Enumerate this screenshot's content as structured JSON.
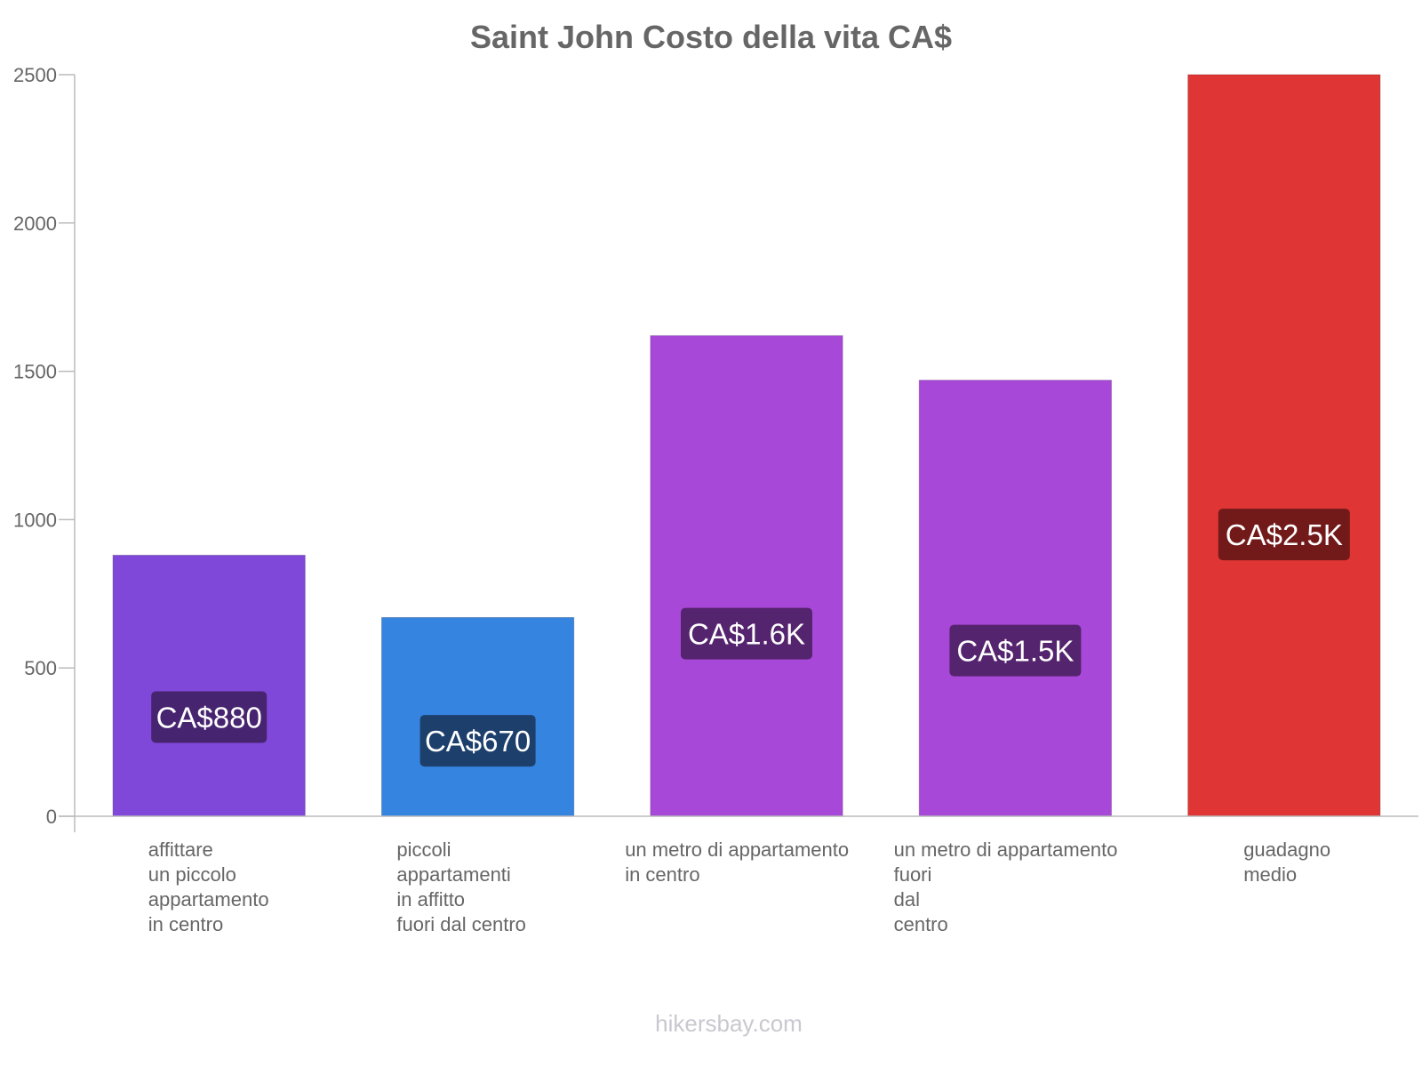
{
  "chart_data": {
    "type": "bar",
    "title": "Saint John Costo della vita CA$",
    "xlabel": "",
    "ylabel": "",
    "ylim": [
      0,
      2500
    ],
    "yticks": [
      0,
      500,
      1000,
      1500,
      2000,
      2500
    ],
    "grid": false,
    "legend": "none",
    "categories": [
      [
        "affittare",
        "un piccolo",
        "appartamento",
        "in centro"
      ],
      [
        "piccoli",
        "appartamenti",
        "in affitto",
        "fuori dal centro"
      ],
      [
        "un metro di appartamento",
        "in centro"
      ],
      [
        "un metro di appartamento",
        "fuori",
        "dal",
        "centro"
      ],
      [
        "guadagno",
        "medio"
      ]
    ],
    "values": [
      880,
      670,
      1620,
      1470,
      2500
    ],
    "data_labels": [
      "CA$880",
      "CA$670",
      "CA$1.6K",
      "CA$1.5K",
      "CA$2.5K"
    ],
    "bar_colors": [
      "#8048d8",
      "#3584e0",
      "#a848d8",
      "#a848d8",
      "#e03535"
    ],
    "label_box_colors": [
      "#472470",
      "#1d3f6b",
      "#55246e",
      "#55246e",
      "#72191a"
    ]
  },
  "footer": {
    "watermark": "hikersbay.com"
  },
  "colors": {
    "axis": "#bbbbbb",
    "title": "#666666",
    "tick_text": "#666666",
    "watermark": "#c8c8d0"
  }
}
